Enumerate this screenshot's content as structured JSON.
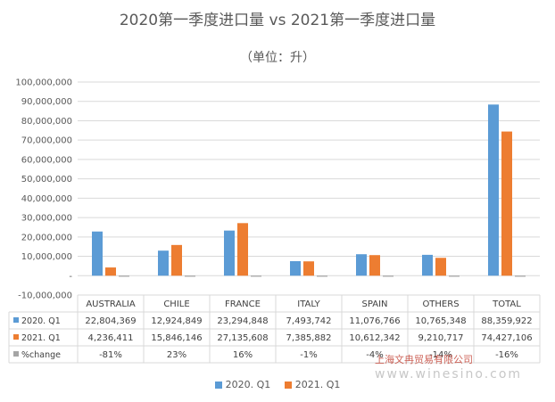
{
  "title": "2020第一季度进口量  vs  2021第一季度进口量",
  "subtitle": "（单位：升）",
  "legend": {
    "a": "2020. Q1",
    "b": "2021. Q1"
  },
  "watermark": {
    "brand": "上海文冉贸易有限公司",
    "site": "www.winesino.com"
  },
  "colors": {
    "series_2020": "#5b9bd5",
    "series_2021": "#ed7d31",
    "series_change": "#a5a5a5",
    "grid": "#d9d9d9"
  },
  "chart_data": {
    "type": "bar",
    "title": "2020第一季度进口量  vs  2021第一季度进口量",
    "subtitle": "（单位：升）",
    "categories": [
      "AUSTRALIA",
      "CHILE",
      "FRANCE",
      "ITALY",
      "SPAIN",
      "OTHERS",
      "TOTAL"
    ],
    "series": [
      {
        "name": "2020. Q1",
        "values": [
          22804369,
          12924849,
          23294848,
          7493742,
          11076766,
          10765348,
          88359922
        ],
        "labels": [
          "22,804,369",
          "12,924,849",
          "23,294,848",
          "7,493,742",
          "11,076,766",
          "10,765,348",
          "88,359,922"
        ]
      },
      {
        "name": "2021. Q1",
        "values": [
          4236411,
          15846146,
          27135608,
          7385882,
          10612342,
          9210717,
          74427106
        ],
        "labels": [
          "4,236,411",
          "15,846,146",
          "27,135,608",
          "7,385,882",
          "10,612,342",
          "9,210,717",
          "74,427,106"
        ]
      },
      {
        "name": "%change",
        "values": [
          -81,
          23,
          16,
          -1,
          -4,
          -14,
          -16
        ],
        "labels": [
          "-81%",
          "23%",
          "16%",
          "-1%",
          "-4%",
          "-14%",
          "-16%"
        ]
      }
    ],
    "ylim": [
      -10000000,
      100000000
    ],
    "yticks": [
      -10000000,
      0,
      10000000,
      20000000,
      30000000,
      40000000,
      50000000,
      60000000,
      70000000,
      80000000,
      90000000,
      100000000
    ],
    "ytick_labels": [
      "-10,000,000",
      "-",
      "10,000,000",
      "20,000,000",
      "30,000,000",
      "40,000,000",
      "50,000,000",
      "60,000,000",
      "70,000,000",
      "80,000,000",
      "90,000,000",
      "100,000,000"
    ],
    "grid": true,
    "data_table": true,
    "legend_position": "bottom"
  }
}
